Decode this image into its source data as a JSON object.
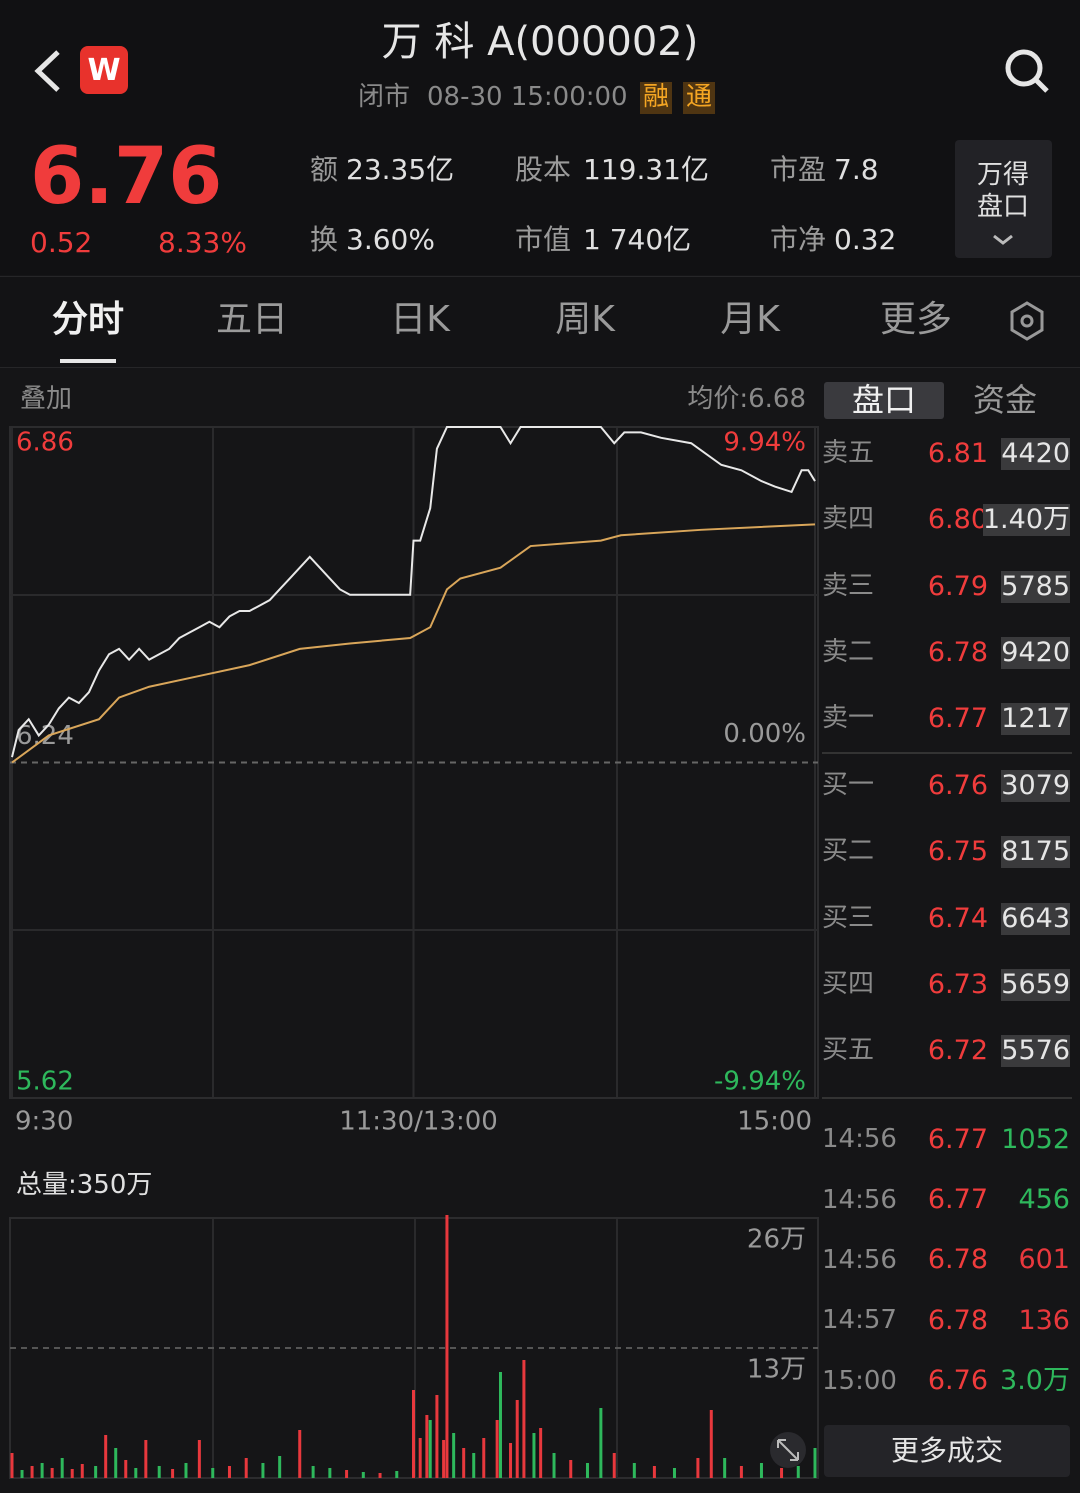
{
  "header": {
    "logo": "W",
    "title": "万 科 A(000002)",
    "status": "闭市",
    "time": "08-30 15:00:00",
    "tags": [
      "融",
      "通"
    ]
  },
  "quote": {
    "price": "6.76",
    "change": "0.52",
    "change_pct": "8.33%",
    "stats": [
      {
        "label": "额",
        "value": "23.35亿"
      },
      {
        "label": "股本",
        "value": "119.31亿"
      },
      {
        "label": "市盈",
        "value": "7.8"
      },
      {
        "label": "换",
        "value": "3.60%"
      },
      {
        "label": "市值",
        "value": "1 740亿"
      },
      {
        "label": "市净",
        "value": "0.32"
      }
    ],
    "button": [
      "万得",
      "盘口"
    ]
  },
  "tabs": {
    "items": [
      "分时",
      "五日",
      "日K",
      "周K",
      "月K",
      "更多"
    ],
    "active": 0
  },
  "labels": {
    "overlay": "叠加",
    "avg_price": "均价:6.68",
    "total_volume": "总量:350万"
  },
  "chart_data": [
    {
      "type": "line",
      "xlim": [
        0,
        240
      ],
      "ylim": [
        5.62,
        6.86
      ],
      "y2lim": [
        -9.94,
        9.94
      ],
      "xticks": [
        {
          "value": 0,
          "label": "9:30"
        },
        {
          "value": 120,
          "label": "11:30/13:00"
        },
        {
          "value": 240,
          "label": "15:00"
        }
      ],
      "yticks": [
        6.86,
        6.24,
        5.62
      ],
      "y2ticks": [
        {
          "value": 9.94,
          "label": "9.94%"
        },
        {
          "value": 0,
          "label": "0.00%"
        },
        {
          "value": -9.94,
          "label": "-9.94%"
        }
      ],
      "series": [
        {
          "color": "#e8e8e8",
          "x": [
            0,
            2,
            5,
            8,
            11,
            14,
            17,
            20,
            23,
            26,
            29,
            32,
            35,
            38,
            41,
            44,
            47,
            50,
            53,
            56,
            59,
            62,
            65,
            68,
            71,
            74,
            77,
            80,
            83,
            86,
            89,
            92,
            95,
            98,
            101,
            107,
            113,
            119,
            120,
            122,
            125,
            127,
            130,
            146,
            149,
            152,
            176,
            180,
            183,
            188,
            194,
            203,
            212,
            218,
            224,
            228,
            233,
            236,
            238,
            240
          ],
          "values": [
            6.25,
            6.3,
            6.32,
            6.29,
            6.31,
            6.34,
            6.36,
            6.35,
            6.37,
            6.41,
            6.44,
            6.45,
            6.43,
            6.45,
            6.43,
            6.44,
            6.45,
            6.47,
            6.48,
            6.49,
            6.5,
            6.49,
            6.51,
            6.52,
            6.52,
            6.53,
            6.54,
            6.56,
            6.58,
            6.6,
            6.62,
            6.6,
            6.58,
            6.56,
            6.55,
            6.55,
            6.55,
            6.55,
            6.65,
            6.65,
            6.71,
            6.82,
            6.86,
            6.86,
            6.83,
            6.86,
            6.86,
            6.83,
            6.85,
            6.85,
            6.84,
            6.83,
            6.79,
            6.78,
            6.76,
            6.75,
            6.74,
            6.78,
            6.78,
            6.76
          ]
        },
        {
          "color": "#d9a65a",
          "x": [
            0,
            11,
            26,
            32,
            41,
            56,
            71,
            86,
            101,
            119,
            125,
            130,
            134,
            146,
            155,
            176,
            182,
            206,
            240
          ],
          "values": [
            6.24,
            6.29,
            6.32,
            6.36,
            6.38,
            6.4,
            6.42,
            6.45,
            6.46,
            6.47,
            6.49,
            6.56,
            6.58,
            6.6,
            6.64,
            6.65,
            6.66,
            6.67,
            6.68
          ]
        }
      ]
    },
    {
      "type": "bar",
      "xlim": [
        0,
        240
      ],
      "ylim": [
        0,
        260000
      ],
      "yticks": [
        {
          "value": 260000,
          "label": "26万"
        },
        {
          "value": 130000,
          "label": "13万"
        }
      ],
      "x": [
        0,
        3,
        6,
        9,
        12,
        15,
        18,
        21,
        25,
        28,
        31,
        34,
        37,
        40,
        44,
        48,
        52,
        56,
        60,
        65,
        70,
        75,
        80,
        86,
        90,
        95,
        100,
        105,
        110,
        115,
        120,
        122,
        124,
        125,
        127,
        129,
        130,
        132,
        135,
        138,
        141,
        145,
        146,
        149,
        151,
        153,
        156,
        158,
        162,
        167,
        172,
        176,
        180,
        186,
        192,
        198,
        205,
        209,
        213,
        218,
        224,
        230,
        235,
        240
      ],
      "values": [
        25000,
        8000,
        12000,
        15000,
        10000,
        20000,
        9000,
        14000,
        12000,
        43000,
        30000,
        18000,
        10000,
        38000,
        12000,
        9000,
        15000,
        38000,
        10000,
        12000,
        20000,
        15000,
        22000,
        48000,
        12000,
        10000,
        8000,
        6000,
        5000,
        7000,
        88000,
        40000,
        63000,
        58000,
        83000,
        38000,
        263000,
        45000,
        30000,
        25000,
        40000,
        58000,
        106000,
        35000,
        78000,
        118000,
        45000,
        50000,
        25000,
        18000,
        15000,
        70000,
        25000,
        15000,
        12000,
        10000,
        20000,
        68000,
        20000,
        12000,
        15000,
        10000,
        12000,
        30000
      ],
      "colors": [
        "#e8383d",
        "#2eb85c",
        "#e8383d",
        "#2eb85c",
        "#e8383d",
        "#2eb85c",
        "#e8383d",
        "#e8383d",
        "#2eb85c",
        "#e8383d",
        "#2eb85c",
        "#e8383d",
        "#2eb85c",
        "#e8383d",
        "#2eb85c",
        "#e8383d",
        "#2eb85c",
        "#e8383d",
        "#2eb85c",
        "#e8383d",
        "#e8383d",
        "#2eb85c",
        "#2eb85c",
        "#e8383d",
        "#2eb85c",
        "#2eb85c",
        "#e8383d",
        "#2eb85c",
        "#e8383d",
        "#2eb85c",
        "#e8383d",
        "#e8383d",
        "#e8383d",
        "#2eb85c",
        "#e8383d",
        "#e8383d",
        "#e8383d",
        "#2eb85c",
        "#e8383d",
        "#2eb85c",
        "#e8383d",
        "#e8383d",
        "#2eb85c",
        "#e8383d",
        "#e8383d",
        "#e8383d",
        "#2eb85c",
        "#e8383d",
        "#2eb85c",
        "#e8383d",
        "#2eb85c",
        "#2eb85c",
        "#e8383d",
        "#2eb85c",
        "#e8383d",
        "#2eb85c",
        "#e8383d",
        "#e8383d",
        "#2eb85c",
        "#e8383d",
        "#2eb85c",
        "#e8383d",
        "#2eb85c",
        "#2eb85c"
      ]
    }
  ],
  "side_tabs": {
    "items": [
      "盘口",
      "资金"
    ],
    "active": 0
  },
  "order_book": {
    "asks": [
      {
        "label": "卖五",
        "price": "6.81",
        "volume": "4420"
      },
      {
        "label": "卖四",
        "price": "6.80",
        "volume": "1.40万"
      },
      {
        "label": "卖三",
        "price": "6.79",
        "volume": "5785"
      },
      {
        "label": "卖二",
        "price": "6.78",
        "volume": "9420"
      },
      {
        "label": "卖一",
        "price": "6.77",
        "volume": "1217"
      }
    ],
    "bids": [
      {
        "label": "买一",
        "price": "6.76",
        "volume": "3079"
      },
      {
        "label": "买二",
        "price": "6.75",
        "volume": "8175"
      },
      {
        "label": "买三",
        "price": "6.74",
        "volume": "6643"
      },
      {
        "label": "买四",
        "price": "6.73",
        "volume": "5659"
      },
      {
        "label": "买五",
        "price": "6.72",
        "volume": "5576"
      }
    ]
  },
  "trades": [
    {
      "time": "14:56",
      "price": "6.77",
      "volume": "1052",
      "color": "#2eb85c"
    },
    {
      "time": "14:56",
      "price": "6.77",
      "volume": "456",
      "color": "#2eb85c"
    },
    {
      "time": "14:56",
      "price": "6.78",
      "volume": "601",
      "color": "#e8383d"
    },
    {
      "time": "14:57",
      "price": "6.78",
      "volume": "136",
      "color": "#e8383d"
    },
    {
      "time": "15:00",
      "price": "6.76",
      "volume": "3.0万",
      "color": "#2eb85c"
    }
  ],
  "more_button": "更多成交"
}
